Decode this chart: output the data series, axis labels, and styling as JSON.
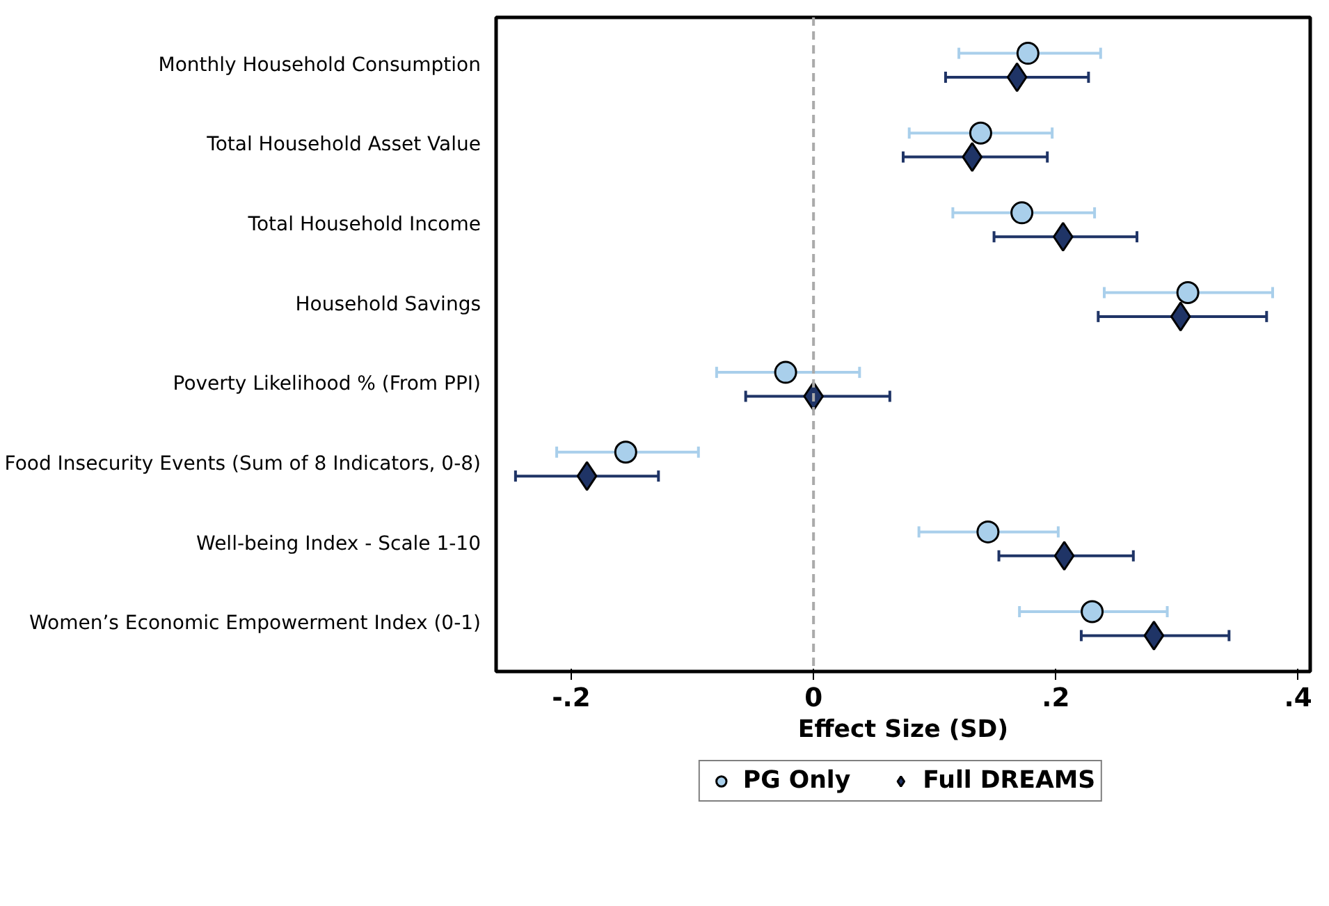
{
  "chart_data": {
    "type": "scatter",
    "orientation": "horizontal",
    "xlabel": "Effect Size (SD)",
    "categories": [
      "Monthly Household Consumption",
      "Total Household Asset Value",
      "Total Household Income",
      "Household Savings",
      "Poverty Likelihood % (From PPI)",
      "Food Insecurity Events (Sum of 8 Indicators, 0-8)",
      "Well-being Index - Scale 1-10",
      "Women’s Economic Empowerment Index (0-1)"
    ],
    "series": [
      {
        "name": "PG Only",
        "color": "#a9cfeb",
        "marker": "circle",
        "values": [
          0.177,
          0.138,
          0.172,
          0.309,
          -0.023,
          -0.155,
          0.144,
          0.23
        ],
        "errors": [
          [
            0.12,
            0.237
          ],
          [
            0.079,
            0.197
          ],
          [
            0.115,
            0.232
          ],
          [
            0.24,
            0.379
          ],
          [
            -0.08,
            0.038
          ],
          [
            -0.212,
            -0.095
          ],
          [
            0.087,
            0.202
          ],
          [
            0.17,
            0.292
          ]
        ]
      },
      {
        "name": "Full DREAMS",
        "color": "#1f3466",
        "marker": "diamond",
        "values": [
          0.168,
          0.131,
          0.206,
          0.303,
          0.0,
          -0.187,
          0.207,
          0.281
        ],
        "errors": [
          [
            0.109,
            0.227
          ],
          [
            0.074,
            0.193
          ],
          [
            0.149,
            0.267
          ],
          [
            0.235,
            0.374
          ],
          [
            -0.056,
            0.063
          ],
          [
            -0.246,
            -0.128
          ],
          [
            0.153,
            0.264
          ],
          [
            0.221,
            0.343
          ]
        ]
      }
    ],
    "xlim": [
      -0.262,
      0.41
    ],
    "xticks": [
      {
        "value": -0.2,
        "label": "-.2"
      },
      0,
      {
        "value": 0.2,
        "label": ".2"
      },
      {
        "value": 0.4,
        "label": ".4"
      }
    ],
    "ref_lines": [
      {
        "axis": "x",
        "value": 0,
        "label": null,
        "color": "#aaaaaa",
        "line_style": "dashed"
      }
    ],
    "grid": false,
    "legend": "bottom"
  }
}
